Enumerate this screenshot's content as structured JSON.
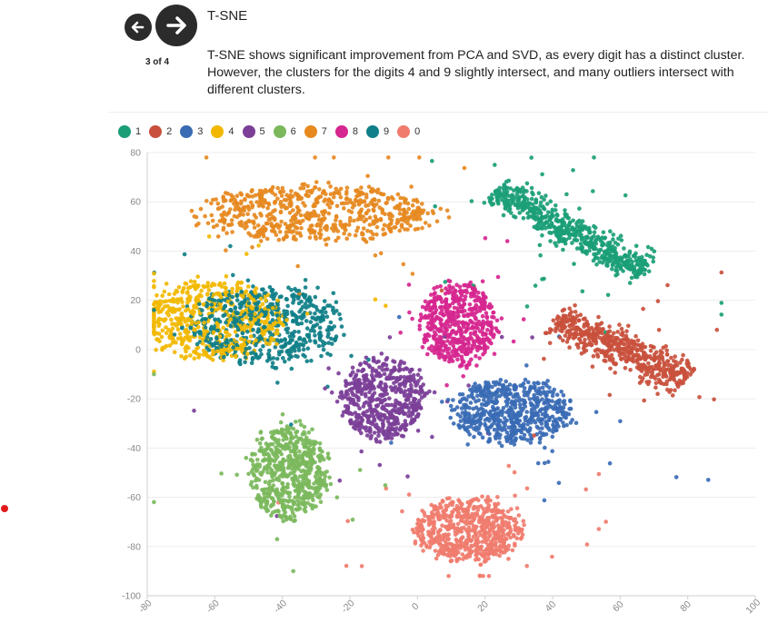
{
  "nav": {
    "prev_icon": "arrow-left-icon",
    "next_icon": "arrow-right-icon",
    "counter": "3 of 4"
  },
  "section": {
    "title": "T-SNE",
    "description": "T-SNE shows significant improvement from PCA and SVD, as every digit has a distinct cluster. However, the clusters for the digits 4 and 9 slightly intersect, and many outliers intersect with different clusters."
  },
  "chart_data": {
    "type": "scatter",
    "title": "",
    "xlabel": "",
    "ylabel": "",
    "xlim": [
      -80,
      100
    ],
    "ylim": [
      -100,
      80
    ],
    "xticks": [
      "-80",
      "-60",
      "-40",
      "-20",
      "0",
      "20",
      "40",
      "60",
      "80",
      "100"
    ],
    "yticks": [
      "80",
      "60",
      "40",
      "20",
      "0",
      "-20",
      "-40",
      "-60",
      "-80",
      "-100"
    ],
    "grid": "horizontal",
    "legend_position": "top-left",
    "series": [
      {
        "name": "1",
        "color": "#1a9e77",
        "center": [
          45,
          48
        ],
        "spread": [
          13,
          8
        ],
        "shape": "diagonal-band",
        "count": 620
      },
      {
        "name": "2",
        "color": "#c9503c",
        "center": [
          60,
          0
        ],
        "spread": [
          11,
          10
        ],
        "shape": "diagonal-band",
        "count": 560
      },
      {
        "name": "3",
        "color": "#3a6bb5",
        "center": [
          28,
          -25
        ],
        "spread": [
          11,
          8
        ],
        "shape": "blob",
        "count": 620
      },
      {
        "name": "4",
        "color": "#f2b800",
        "center": [
          -60,
          12
        ],
        "spread": [
          13,
          10
        ],
        "shape": "blob",
        "count": 560
      },
      {
        "name": "5",
        "color": "#7b3f98",
        "center": [
          -10,
          -20
        ],
        "spread": [
          8,
          10
        ],
        "shape": "blob",
        "count": 560
      },
      {
        "name": "6",
        "color": "#7bb85c",
        "center": [
          -38,
          -50
        ],
        "spread": [
          7,
          12
        ],
        "shape": "blob",
        "count": 620
      },
      {
        "name": "7",
        "color": "#e6891f",
        "center": [
          -30,
          55
        ],
        "spread": [
          22,
          7
        ],
        "shape": "blob",
        "count": 650
      },
      {
        "name": "8",
        "color": "#d6268f",
        "center": [
          12,
          10
        ],
        "spread": [
          7,
          10
        ],
        "shape": "blob",
        "count": 560
      },
      {
        "name": "9",
        "color": "#0f7f88",
        "center": [
          -45,
          10
        ],
        "spread": [
          14,
          10
        ],
        "shape": "blob",
        "count": 600
      },
      {
        "name": "0",
        "color": "#f07c6e",
        "center": [
          15,
          -73
        ],
        "spread": [
          10,
          8
        ],
        "shape": "blob",
        "count": 650
      }
    ]
  }
}
